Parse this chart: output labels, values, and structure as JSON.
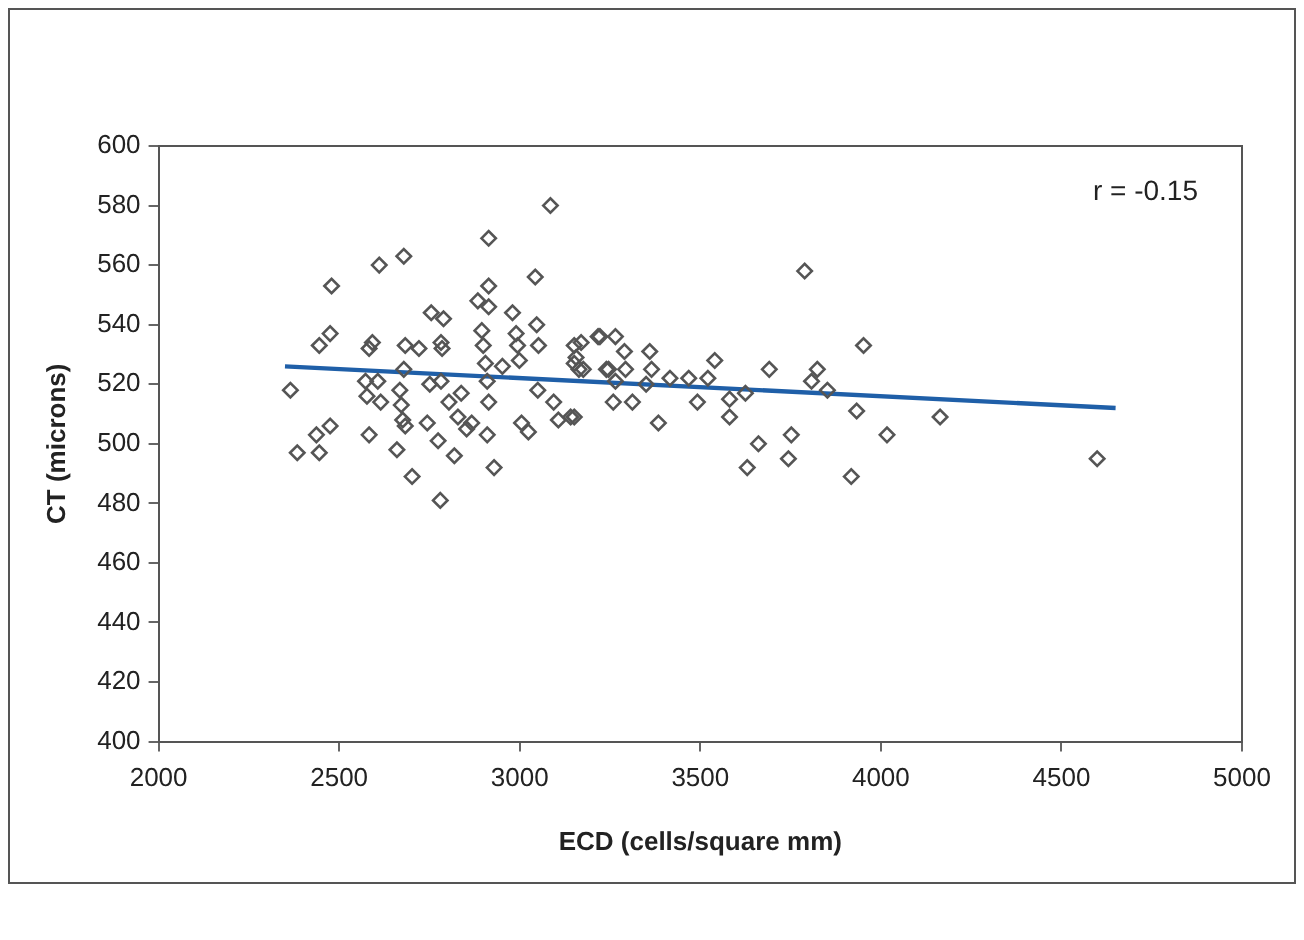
{
  "chart_data": {
    "type": "scatter",
    "xlabel": "ECD (cells/square mm)",
    "ylabel": "CT (microns)",
    "xlim": [
      2000,
      5000
    ],
    "xticks": [
      2000,
      2500,
      3000,
      3500,
      4000,
      4500,
      5000
    ],
    "ylim": [
      400,
      600
    ],
    "yticks": [
      400,
      420,
      440,
      460,
      480,
      500,
      520,
      540,
      560,
      580,
      600
    ],
    "grid": false,
    "legend": false,
    "marker": "diamond",
    "annotations": [
      "r = -0.15"
    ],
    "series": [
      {
        "type": "scatter",
        "color": "#555555",
        "x": [
          2365,
          2384,
          2437,
          2445,
          2475,
          2479,
          2445,
          2475,
          2583,
          2583,
          2592,
          2611,
          2679,
          2573,
          2577,
          2607,
          2615,
          2660,
          2668,
          2672,
          2676,
          2683,
          2683,
          2702,
          2721,
          2679,
          2744,
          2755,
          2789,
          2774,
          2782,
          2785,
          2780,
          2804,
          2819,
          2829,
          2838,
          2853,
          2867,
          2751,
          2782,
          2914,
          2914,
          2884,
          2914,
          2895,
          2899,
          2905,
          2910,
          2914,
          2910,
          2929,
          2952,
          2980,
          2990,
          2994,
          2999,
          3005,
          3024,
          3043,
          3047,
          3052,
          3050,
          3094,
          3107,
          3141,
          3151,
          3156,
          3164,
          3217,
          3240,
          3085,
          3170,
          3222,
          3265,
          3290,
          3246,
          3293,
          3176,
          3151,
          3360,
          3365,
          3265,
          3350,
          3416,
          3468,
          3521,
          3540,
          3492,
          3581,
          3581,
          3625,
          3259,
          3312,
          3151,
          3384,
          3691,
          3661,
          3630,
          3752,
          3744,
          3789,
          3824,
          3808,
          3852,
          3933,
          3952,
          3918,
          4017,
          4164,
          4599
        ],
        "values": [
          518,
          497,
          503,
          497,
          506,
          553,
          533,
          537,
          503,
          532,
          534,
          560,
          563,
          521,
          516,
          521,
          514,
          498,
          518,
          513,
          508,
          533,
          506,
          489,
          532,
          525,
          507,
          544,
          542,
          501,
          534,
          532,
          481,
          514,
          496,
          509,
          517,
          505,
          507,
          520,
          521,
          569,
          553,
          548,
          546,
          538,
          533,
          527,
          521,
          514,
          503,
          492,
          526,
          544,
          537,
          533,
          528,
          507,
          504,
          556,
          540,
          533,
          518,
          514,
          508,
          509,
          533,
          529,
          525,
          536,
          525,
          580,
          534,
          536,
          536,
          531,
          525,
          525,
          525,
          527,
          531,
          525,
          521,
          520,
          522,
          522,
          522,
          528,
          514,
          515,
          509,
          517,
          514,
          514,
          509,
          507,
          525,
          500,
          492,
          503,
          495,
          558,
          525,
          521,
          518,
          511,
          533,
          489,
          503,
          509,
          495
        ]
      },
      {
        "type": "line",
        "color": "#1f5fa8",
        "x": [
          2350,
          4650
        ],
        "values": [
          526,
          512
        ],
        "marker": "none",
        "line_style": "solid"
      }
    ]
  }
}
